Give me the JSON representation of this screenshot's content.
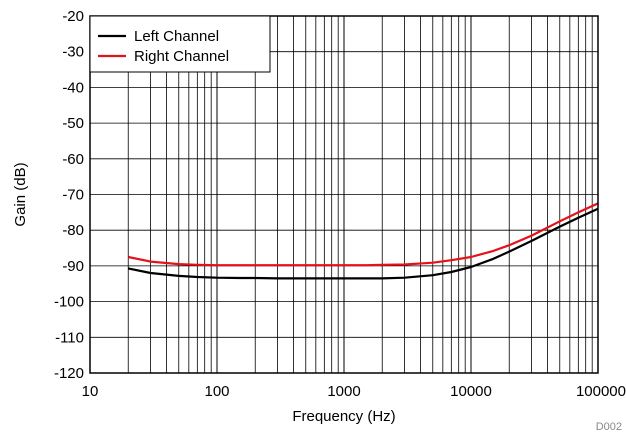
{
  "chart_data": {
    "type": "line",
    "title": "",
    "xlabel": "Frequency (Hz)",
    "ylabel": "Gain (dB)",
    "x_scale": "log",
    "xlim": [
      10,
      100000
    ],
    "ylim": [
      -120,
      -20
    ],
    "x_ticks": [
      "10",
      "100",
      "1000",
      "10000",
      "100000"
    ],
    "y_ticks": [
      "-20",
      "-30",
      "-40",
      "-50",
      "-60",
      "-70",
      "-80",
      "-90",
      "-100",
      "-110",
      "-120"
    ],
    "grid": true,
    "legend_position": "top-left",
    "figure_id": "D002",
    "series": [
      {
        "name": "Left Channel",
        "color": "#000000",
        "x": [
          20,
          30,
          50,
          70,
          100,
          150,
          200,
          300,
          500,
          700,
          1000,
          1500,
          2000,
          3000,
          5000,
          7000,
          10000,
          15000,
          20000,
          30000,
          50000,
          70000,
          100000
        ],
        "y": [
          -90.7,
          -92.0,
          -92.8,
          -93.1,
          -93.3,
          -93.4,
          -93.4,
          -93.5,
          -93.5,
          -93.5,
          -93.5,
          -93.5,
          -93.5,
          -93.3,
          -92.6,
          -91.7,
          -90.3,
          -88.0,
          -86.0,
          -83.0,
          -79.0,
          -76.5,
          -74.0
        ]
      },
      {
        "name": "Right Channel",
        "color": "#e8101a",
        "x": [
          20,
          30,
          50,
          70,
          100,
          150,
          200,
          300,
          500,
          700,
          1000,
          1500,
          2000,
          3000,
          5000,
          7000,
          10000,
          15000,
          20000,
          30000,
          50000,
          70000,
          100000
        ],
        "y": [
          -87.5,
          -88.8,
          -89.5,
          -89.7,
          -89.8,
          -89.8,
          -89.8,
          -89.8,
          -89.8,
          -89.8,
          -89.8,
          -89.8,
          -89.7,
          -89.6,
          -89.1,
          -88.4,
          -87.5,
          -85.8,
          -84.2,
          -81.5,
          -77.5,
          -75.0,
          -72.5
        ]
      }
    ]
  }
}
